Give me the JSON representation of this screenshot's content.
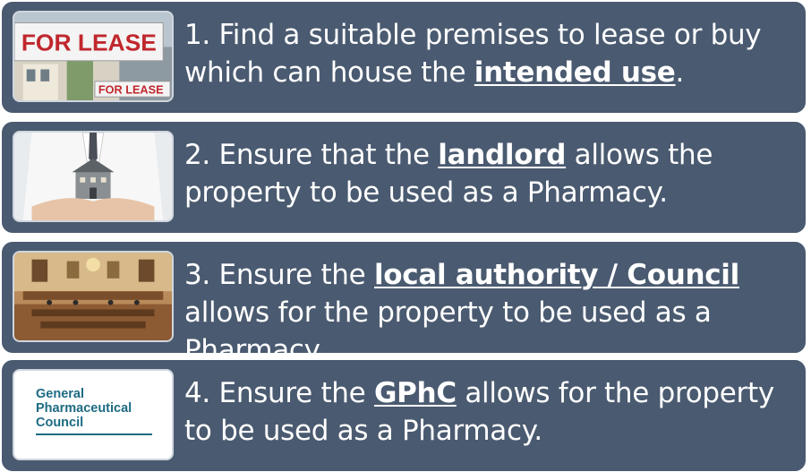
{
  "steps": [
    {
      "pre": "1. Find a suitable premises to lease or buy which can house the ",
      "bold": "intended use",
      "post": ".",
      "image": "for-lease-sign",
      "sign_text": "FOR LEASE",
      "sign_text_small": "FOR LEASE"
    },
    {
      "pre": "2. Ensure that the ",
      "bold": "landlord",
      "post": " allows the property to be used as a Pharmacy.",
      "image": "hands-holding-house"
    },
    {
      "pre": "3. Ensure the ",
      "bold": "local authority / Council ",
      "post": "allows for the property to be used as a Pharmacy.",
      "image": "council-chamber"
    },
    {
      "pre": "4. Ensure the ",
      "bold": "GPhC",
      "post": " allows for the property to be used as a Pharmacy.",
      "image": "gphc-logo",
      "logo_lines": [
        "General",
        "Pharmaceutical",
        "Council"
      ]
    }
  ],
  "colors": {
    "card_bg": "#4a5a70",
    "text": "#ffffff",
    "logo_teal": "#1d6b83",
    "sign_red": "#c0272d"
  }
}
